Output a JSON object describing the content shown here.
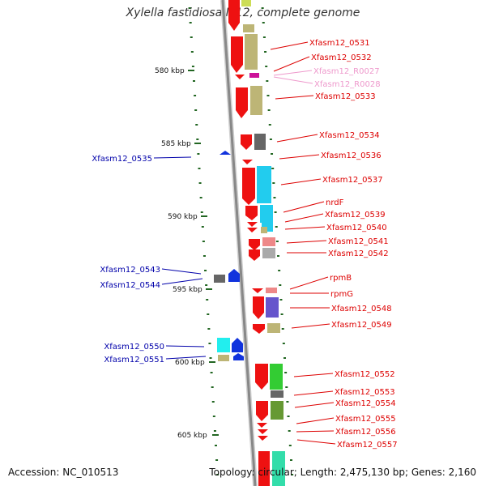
{
  "title": "Xylella fastidiosa M12, complete genome",
  "footer": {
    "accession": "Accession: NC_010513",
    "summary": "Topology: circular; Length: 2,475,130 bp; Genes: 2,160"
  },
  "colors": {
    "forward_label": "#dd0000",
    "reverse_label": "#0000aa",
    "rna_label": "#ee99cc",
    "backbone": "#888888",
    "tick": "#226622"
  },
  "scale_labels": [
    "580 kbp",
    "585 kbp",
    "590 kbp",
    "595 kbp",
    "600 kbp",
    "605 kbp"
  ],
  "labels_right": [
    "Xfasm12_0531",
    "Xfasm12_0532",
    "Xfasm12_R0027",
    "Xfasm12_R0028",
    "Xfasm12_0533",
    "Xfasm12_0534",
    "Xfasm12_0536",
    "Xfasm12_0537",
    "nrdF",
    "Xfasm12_0539",
    "Xfasm12_0540",
    "Xfasm12_0541",
    "Xfasm12_0542",
    "rpmB",
    "rpmG",
    "Xfasm12_0548",
    "Xfasm12_0549",
    "Xfasm12_0552",
    "Xfasm12_0553",
    "Xfasm12_0554",
    "Xfasm12_0555",
    "Xfasm12_0556",
    "Xfasm12_0557"
  ],
  "labels_left": [
    "Xfasm12_0535",
    "Xfasm12_0543",
    "Xfasm12_0544",
    "Xfasm12_0550",
    "Xfasm12_0551"
  ]
}
